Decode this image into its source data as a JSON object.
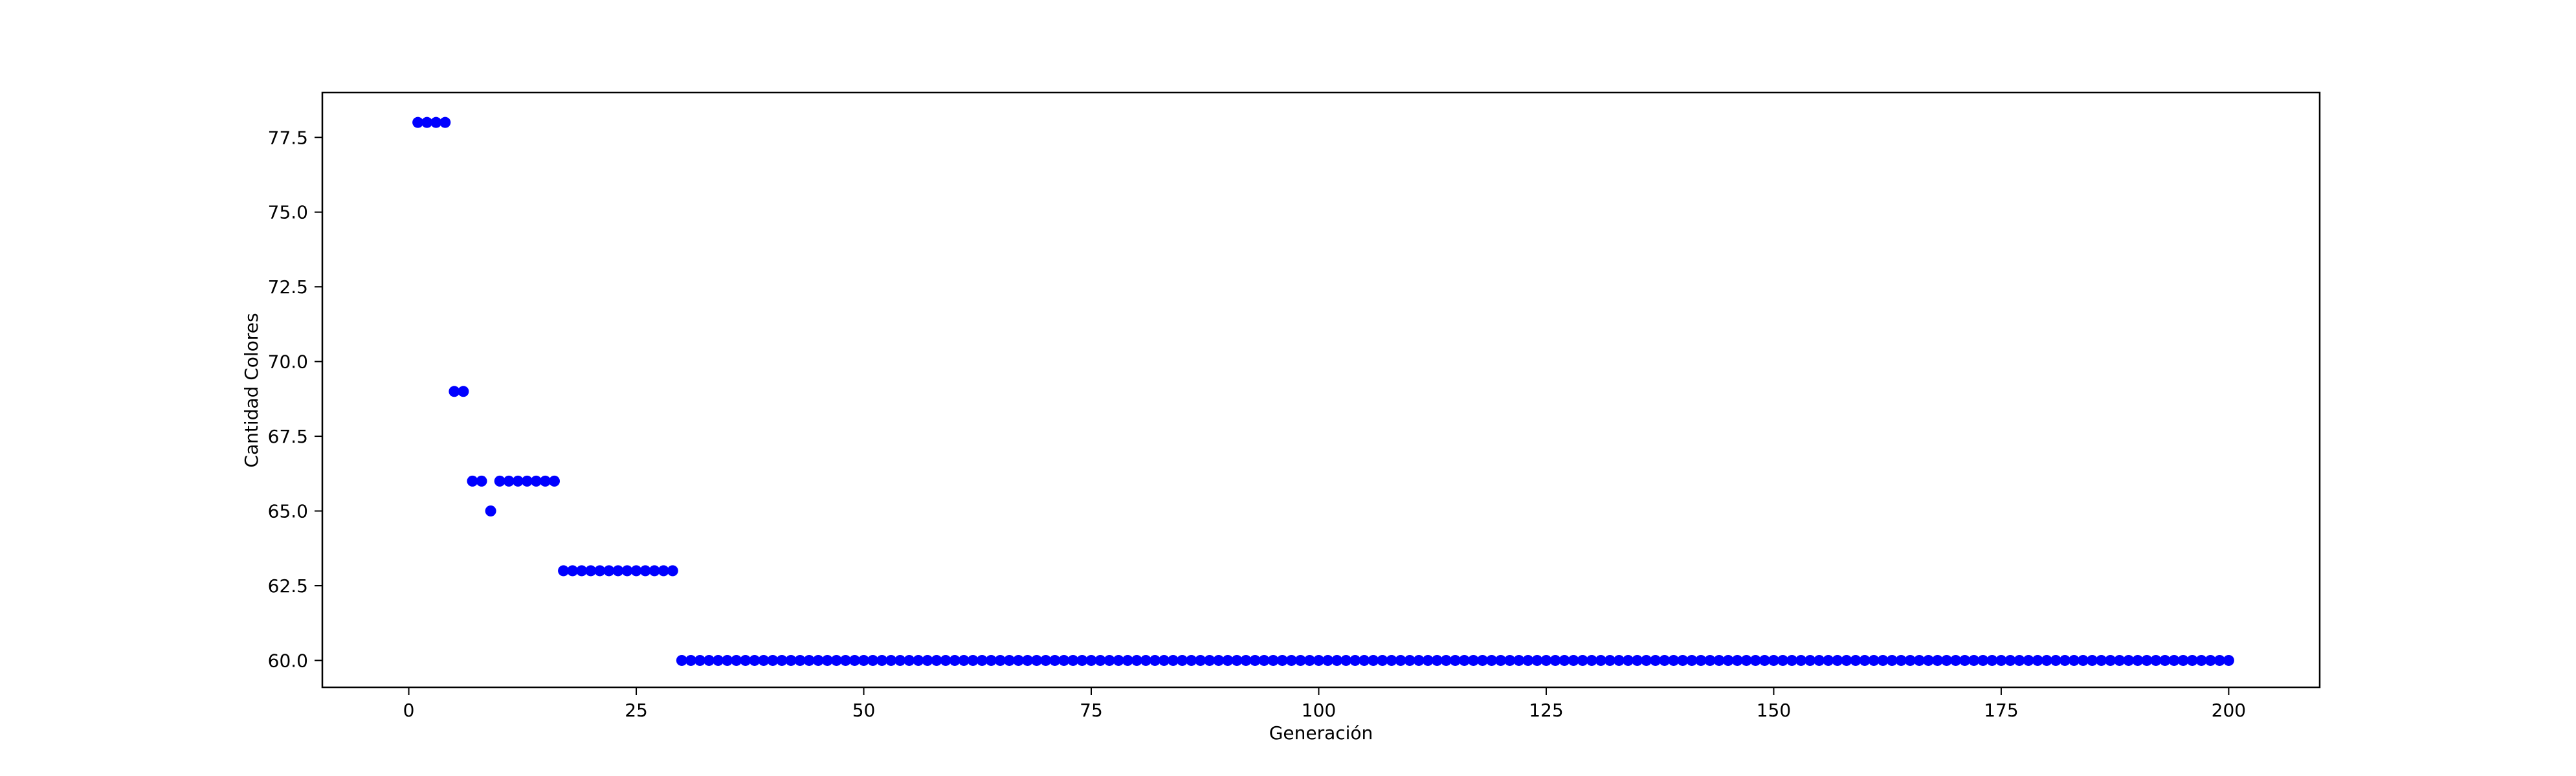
{
  "chart_data": {
    "type": "scatter",
    "xlabel": "Generación",
    "ylabel": "Cantidad Colores",
    "xlim": [
      -9.5,
      210
    ],
    "ylim": [
      59.1,
      79.0
    ],
    "x_ticks": [
      0,
      25,
      50,
      75,
      100,
      125,
      150,
      175,
      200
    ],
    "x_tick_labels": [
      "0",
      "25",
      "50",
      "75",
      "100",
      "125",
      "150",
      "175",
      "200"
    ],
    "y_ticks": [
      60.0,
      62.5,
      65.0,
      67.5,
      70.0,
      72.5,
      75.0,
      77.5
    ],
    "y_tick_labels": [
      "60.0",
      "62.5",
      "65.0",
      "67.5",
      "70.0",
      "72.5",
      "75.0",
      "77.5"
    ],
    "grid": false,
    "marker_color": "#0000ff",
    "segments": [
      {
        "x_start": 1,
        "x_end": 4,
        "y": 78
      },
      {
        "x_start": 5,
        "x_end": 6,
        "y": 69
      },
      {
        "x_start": 7,
        "x_end": 8,
        "y": 66
      },
      {
        "x_start": 9,
        "x_end": 9,
        "y": 65
      },
      {
        "x_start": 10,
        "x_end": 16,
        "y": 66
      },
      {
        "x_start": 17,
        "x_end": 29,
        "y": 63
      },
      {
        "x_start": 30,
        "x_end": 200,
        "y": 60
      }
    ]
  }
}
